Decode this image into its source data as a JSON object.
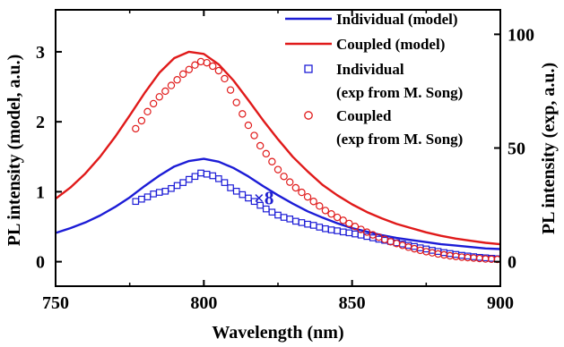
{
  "chart_data": {
    "type": "scatter",
    "xlabel": "Wavelength (nm)",
    "ylabel_left": "PL intensity (model, a.u.)",
    "ylabel_right": "PL intensity (exp, a.u.)",
    "xlim": [
      750,
      900
    ],
    "ylim_left": [
      -0.35,
      3.6
    ],
    "ylim_right": [
      -10.77,
      110.77
    ],
    "x_ticks": [
      750,
      800,
      850,
      900
    ],
    "y_ticks_left": [
      0,
      1,
      2,
      3
    ],
    "y_ticks_right": [
      0,
      50,
      100
    ],
    "annotation": {
      "text": "×8",
      "x": 815,
      "y": 0.92,
      "color": "#1f1fd0"
    },
    "colors": {
      "blue": "#1c1cd6",
      "red": "#e01a1a"
    },
    "legend": [
      {
        "line1": "Individual (model)",
        "line2": "",
        "marker": "line",
        "color": "#1c1cd6"
      },
      {
        "line1": "Coupled (model)",
        "line2": "",
        "marker": "line",
        "color": "#e01a1a"
      },
      {
        "line1": "Individual",
        "line2": "(exp from M. Song)",
        "marker": "square",
        "color": "#1c1cd6"
      },
      {
        "line1": "Coupled",
        "line2": "(exp from M. Song)",
        "marker": "circle",
        "color": "#e01a1a"
      }
    ],
    "legend_position": "top-right",
    "series": [
      {
        "name": "Individual (model)",
        "kind": "line",
        "axis": "left",
        "color": "#1c1cd6",
        "x": [
          750,
          755,
          760,
          765,
          770,
          775,
          780,
          785,
          790,
          795,
          800,
          805,
          810,
          815,
          820,
          825,
          830,
          835,
          840,
          845,
          850,
          855,
          860,
          865,
          870,
          875,
          880,
          885,
          890,
          895,
          900
        ],
        "y": [
          0.41,
          0.48,
          0.56,
          0.66,
          0.78,
          0.92,
          1.08,
          1.23,
          1.36,
          1.44,
          1.47,
          1.43,
          1.34,
          1.22,
          1.08,
          0.95,
          0.83,
          0.72,
          0.63,
          0.55,
          0.48,
          0.43,
          0.38,
          0.34,
          0.31,
          0.28,
          0.25,
          0.23,
          0.21,
          0.19,
          0.18
        ]
      },
      {
        "name": "Coupled (model)",
        "kind": "line",
        "axis": "left",
        "color": "#e01a1a",
        "x": [
          750,
          755,
          760,
          765,
          770,
          775,
          780,
          785,
          790,
          795,
          800,
          805,
          810,
          815,
          820,
          825,
          830,
          835,
          840,
          845,
          850,
          855,
          860,
          865,
          870,
          875,
          880,
          885,
          890,
          895,
          900
        ],
        "y": [
          0.9,
          1.06,
          1.26,
          1.5,
          1.78,
          2.09,
          2.41,
          2.7,
          2.91,
          3.0,
          2.97,
          2.82,
          2.59,
          2.31,
          2.02,
          1.75,
          1.5,
          1.29,
          1.1,
          0.95,
          0.82,
          0.71,
          0.62,
          0.54,
          0.48,
          0.42,
          0.37,
          0.33,
          0.3,
          0.27,
          0.25
        ]
      },
      {
        "name": "Individual",
        "kind": "scatter",
        "marker": "square",
        "axis": "right",
        "color": "#1c1cd6",
        "x": [
          777,
          779,
          781,
          783,
          785,
          787,
          789,
          791,
          793,
          795,
          797,
          799,
          801,
          803,
          805,
          807,
          809,
          811,
          813,
          815,
          817,
          819,
          821,
          823,
          825,
          827,
          829,
          831,
          833,
          835,
          837,
          839,
          841,
          843,
          845,
          847,
          849,
          851,
          853,
          855,
          857,
          859,
          861,
          863,
          865,
          867,
          869,
          871,
          873,
          875,
          877,
          879,
          881,
          883,
          885,
          887,
          889,
          891,
          893,
          895,
          897,
          899
        ],
        "y": [
          26.5,
          27.5,
          28.5,
          29.8,
          30.5,
          31.0,
          32.2,
          33.5,
          34.8,
          36.2,
          37.5,
          39.0,
          38.5,
          37.8,
          36.5,
          34.8,
          32.5,
          31.0,
          29.5,
          28.0,
          26.5,
          24.8,
          23.2,
          21.8,
          20.5,
          19.5,
          18.8,
          17.8,
          17.2,
          16.5,
          16.0,
          15.2,
          14.5,
          14.0,
          13.6,
          13.1,
          12.7,
          12.2,
          11.7,
          11.1,
          10.5,
          9.9,
          9.4,
          8.9,
          8.3,
          7.8,
          7.2,
          6.7,
          6.1,
          5.6,
          5.0,
          4.5,
          4.0,
          3.6,
          3.2,
          2.8,
          2.5,
          2.2,
          1.9,
          1.7,
          1.5,
          1.3
        ]
      },
      {
        "name": "Coupled",
        "kind": "scatter",
        "marker": "circle",
        "axis": "right",
        "color": "#e01a1a",
        "x": [
          777,
          779,
          781,
          783,
          785,
          787,
          789,
          791,
          793,
          795,
          797,
          799,
          801,
          803,
          805,
          807,
          809,
          811,
          813,
          815,
          817,
          819,
          821,
          823,
          825,
          827,
          829,
          831,
          833,
          835,
          837,
          839,
          841,
          843,
          845,
          847,
          849,
          851,
          853,
          855,
          857,
          859,
          861,
          863,
          865,
          867,
          869,
          871,
          873,
          875,
          877,
          879,
          881,
          883,
          885,
          887,
          889,
          891,
          893,
          895,
          897,
          899
        ],
        "y": [
          58.5,
          62.0,
          66.0,
          69.5,
          72.5,
          75.0,
          77.5,
          80.0,
          82.5,
          84.5,
          86.5,
          88.0,
          87.5,
          86.0,
          84.0,
          80.5,
          75.5,
          70.0,
          65.0,
          60.0,
          55.5,
          51.0,
          47.5,
          44.0,
          40.5,
          37.5,
          35.0,
          32.5,
          30.5,
          28.5,
          26.5,
          24.5,
          22.5,
          21.0,
          19.5,
          18.2,
          16.8,
          15.5,
          14.2,
          13.0,
          11.8,
          10.8,
          9.8,
          8.8,
          8.0,
          7.2,
          6.4,
          5.7,
          5.0,
          4.4,
          3.9,
          3.4,
          3.0,
          2.6,
          2.3,
          2.0,
          1.8,
          1.6,
          1.4,
          1.2,
          1.1,
          1.0
        ]
      }
    ]
  }
}
